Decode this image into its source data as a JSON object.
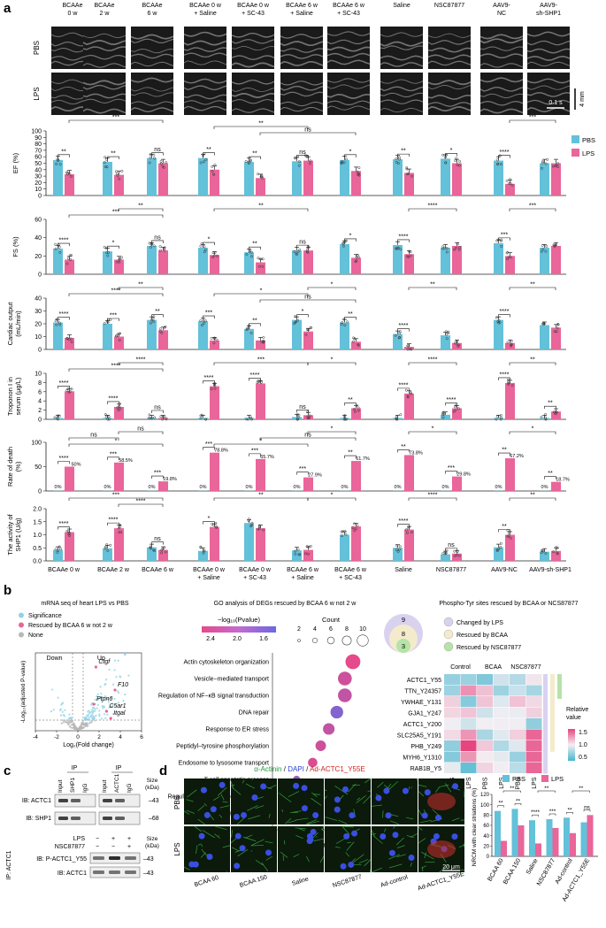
{
  "panels": {
    "a": "a",
    "b": "b",
    "c": "c",
    "d": "d"
  },
  "colors": {
    "pbs": "#63c1d9",
    "lps": "#e9659a",
    "axis": "#222222",
    "sig": "#111111",
    "echo_bg": "#1a1a1a"
  },
  "panel_a": {
    "echo_groups": [
      {
        "name": "BCAAe 0 w",
        "lines": [
          "BCAAe",
          "0 w"
        ]
      },
      {
        "name": "BCAAe 2 w",
        "lines": [
          "BCAAe",
          "2 w"
        ]
      },
      {
        "name": "BCAAe 6 w",
        "lines": [
          "BCAAe",
          "6 w"
        ]
      },
      {
        "name": "BCAAe 0 w + Saline",
        "lines": [
          "BCAAe 0 w",
          "+ Saline"
        ]
      },
      {
        "name": "BCAAe 0 w + SC-43",
        "lines": [
          "BCAAe 0 w",
          "+ SC-43"
        ]
      },
      {
        "name": "BCAAe 6 w + Saline",
        "lines": [
          "BCAAe 6 w",
          "+ Saline"
        ]
      },
      {
        "name": "BCAAe 6 w + SC-43",
        "lines": [
          "BCAAe 6 w",
          "+ SC-43"
        ]
      },
      {
        "name": "Saline",
        "lines": [
          "Saline"
        ]
      },
      {
        "name": "NSC87877",
        "lines": [
          "NSC87877"
        ]
      },
      {
        "name": "AAV9-NC",
        "lines": [
          "AAV9-",
          "NC"
        ]
      },
      {
        "name": "AAV9-sh-SHP1",
        "lines": [
          "AAV9-",
          "sh-SHP1"
        ]
      }
    ],
    "echo_rows": [
      "PBS",
      "LPS"
    ],
    "scale_bars": {
      "time": "0.1 s",
      "depth": "4 mm"
    },
    "legend": {
      "pbs": "PBS",
      "lps": "LPS"
    },
    "x_labels": [
      {
        "lines": [
          "BCAAe 0 w"
        ]
      },
      {
        "lines": [
          "BCAAe 2 w"
        ]
      },
      {
        "lines": [
          "BCAAe 6 w"
        ]
      },
      {
        "lines": [
          "BCAAe 0 w",
          "+ Saline"
        ]
      },
      {
        "lines": [
          "BCAAe 0 w",
          "+ SC-43"
        ]
      },
      {
        "lines": [
          "BCAAe 6 w",
          "+ Saline"
        ]
      },
      {
        "lines": [
          "BCAAe 6 w",
          "+ SC-43"
        ]
      },
      {
        "lines": [
          "Saline"
        ]
      },
      {
        "lines": [
          "NSC87877"
        ]
      },
      {
        "lines": [
          "AAV9-NC"
        ]
      },
      {
        "lines": [
          "AAV9-sh-SHP1"
        ]
      }
    ]
  },
  "chart_data": [
    {
      "type": "bar",
      "id": "ef",
      "ylabel": [
        "EF (%)"
      ],
      "ylim": [
        0,
        100
      ],
      "yticks": [
        "0",
        "10",
        "20",
        "30",
        "40",
        "50",
        "60",
        "70",
        "80",
        "90",
        "100"
      ],
      "categories": [
        "BCAAe 0 w",
        "BCAAe 2 w",
        "BCAAe 6 w",
        "BCAAe 0 w + Saline",
        "BCAAe 0 w + SC-43",
        "BCAAe 6 w + Saline",
        "BCAAe 6 w + SC-43",
        "Saline",
        "NSC87877",
        "AAV9-NC",
        "AAV9-sh-SHP1"
      ],
      "series": [
        {
          "name": "PBS",
          "values": [
            55,
            52,
            58,
            58,
            52,
            53,
            55,
            56,
            57,
            54,
            50
          ]
        },
        {
          "name": "LPS",
          "values": [
            33,
            32,
            50,
            40,
            27,
            54,
            38,
            35,
            50,
            18,
            50
          ]
        }
      ],
      "local_sig": [
        "**",
        "**",
        "ns",
        "**",
        "**",
        "ns",
        "*",
        "**",
        "*",
        "****",
        ""
      ],
      "cross_sig": [
        {
          "text": "***",
          "a": 0,
          "b": 2,
          "level": 0
        },
        {
          "text": "ns",
          "a": 4,
          "b": 6,
          "level": 2
        },
        {
          "text": "**",
          "a": 3,
          "b": 5,
          "level": 1
        },
        {
          "text": "***",
          "a": 9,
          "b": 10,
          "level": 0
        }
      ]
    },
    {
      "type": "bar",
      "id": "fs",
      "ylabel": [
        "FS (%)"
      ],
      "ylim": [
        0,
        60
      ],
      "yticks": [
        "0",
        "20",
        "40",
        "60"
      ],
      "categories": [
        "BCAAe 0 w",
        "BCAAe 2 w",
        "BCAAe 6 w",
        "BCAAe 0 w + Saline",
        "BCAAe 0 w + SC-43",
        "BCAAe 6 w + Saline",
        "BCAAe 6 w + SC-43",
        "Saline",
        "NSC87877",
        "AAV9-NC",
        "AAV9-sh-SHP1"
      ],
      "series": [
        {
          "name": "PBS",
          "values": [
            28,
            25,
            31,
            29,
            24,
            26,
            33,
            32,
            29,
            34,
            29
          ]
        },
        {
          "name": "LPS",
          "values": [
            16,
            16,
            26,
            21,
            13,
            26,
            18,
            22,
            31,
            20,
            31
          ]
        }
      ],
      "local_sig": [
        "****",
        "*",
        "ns",
        "*",
        "**",
        "ns",
        "*",
        "****",
        "",
        "***",
        ""
      ],
      "cross_sig": [
        {
          "text": "***",
          "a": 0,
          "b": 2,
          "level": 1
        },
        {
          "text": "**",
          "a": 1,
          "b": 2,
          "level": 0
        },
        {
          "text": "**",
          "a": 3,
          "b": 5,
          "level": 0
        },
        {
          "text": "****",
          "a": 7,
          "b": 8,
          "level": 0
        },
        {
          "text": "***",
          "a": 9,
          "b": 10,
          "level": 0
        }
      ]
    },
    {
      "type": "bar",
      "id": "co",
      "ylabel": [
        "Cardiac output",
        "(mL/min)"
      ],
      "ylim": [
        0,
        40
      ],
      "yticks": [
        "0",
        "10",
        "20",
        "30",
        "40"
      ],
      "categories": [
        "BCAAe 0 w",
        "BCAAe 2 w",
        "BCAAe 6 w",
        "BCAAe 0 w + Saline",
        "BCAAe 0 w + SC-43",
        "BCAAe 6 w + Saline",
        "BCAAe 6 w + SC-43",
        "Saline",
        "NSC87877",
        "AAV9-NC",
        "AAV9-sh-SHP1"
      ],
      "series": [
        {
          "name": "PBS",
          "values": [
            21,
            20,
            23,
            22,
            16,
            23,
            21,
            12,
            11,
            23,
            19
          ]
        },
        {
          "name": "LPS",
          "values": [
            9,
            10,
            15,
            7,
            7,
            14,
            6,
            2,
            5,
            5,
            17
          ]
        }
      ],
      "local_sig": [
        "****",
        "***",
        "**",
        "***",
        "**",
        "*",
        "**",
        "****",
        "",
        "****",
        ""
      ],
      "cross_sig": [
        {
          "text": "****",
          "a": 0,
          "b": 2,
          "level": 1
        },
        {
          "text": "**",
          "a": 1,
          "b": 2,
          "level": 0
        },
        {
          "text": "ns",
          "a": 4,
          "b": 6,
          "level": 2
        },
        {
          "text": "*",
          "a": 3,
          "b": 5,
          "level": 1
        },
        {
          "text": "*",
          "a": 5,
          "b": 6,
          "level": 0
        },
        {
          "text": "**",
          "a": 7,
          "b": 8,
          "level": 0
        },
        {
          "text": "**",
          "a": 9,
          "b": 10,
          "level": 0
        }
      ]
    },
    {
      "type": "bar",
      "id": "troponin",
      "ylabel": [
        "Troponon I in",
        "serum (μg/L)"
      ],
      "ylim": [
        0,
        10
      ],
      "yticks": [
        "0",
        "2",
        "4",
        "6",
        "8",
        "10"
      ],
      "categories": [
        "BCAAe 0 w",
        "BCAAe 2 w",
        "BCAAe 6 w",
        "BCAAe 0 w + Saline",
        "BCAAe 0 w + SC-43",
        "BCAAe 6 w + Saline",
        "BCAAe 6 w + SC-43",
        "Saline",
        "NSC87877",
        "AAV9-NC",
        "AAV9-sh-SHP1"
      ],
      "series": [
        {
          "name": "PBS",
          "values": [
            0.3,
            0.3,
            0.3,
            0.3,
            0.3,
            0.5,
            0.3,
            0.3,
            1.0,
            0.3,
            0.3
          ]
        },
        {
          "name": "LPS",
          "values": [
            6.1,
            2.7,
            0.3,
            7.2,
            7.8,
            0.9,
            2.4,
            5.6,
            2.4,
            7.9,
            1.7
          ]
        }
      ],
      "local_sig": [
        "****",
        "****",
        "ns",
        "****",
        "****",
        "ns",
        "**",
        "****",
        "****",
        "****",
        "**"
      ],
      "cross_sig": [
        {
          "text": "****",
          "a": 0,
          "b": 2,
          "level": 1
        },
        {
          "text": "****",
          "a": 1,
          "b": 2,
          "level": 0
        },
        {
          "text": "***",
          "a": 3,
          "b": 5,
          "level": 0
        },
        {
          "text": "*",
          "a": 5,
          "b": 6,
          "level": 0
        },
        {
          "text": "****",
          "a": 7,
          "b": 8,
          "level": 0
        },
        {
          "text": "**",
          "a": 9,
          "b": 10,
          "level": 0
        }
      ]
    },
    {
      "type": "bar",
      "id": "death",
      "ylabel": [
        "Rate of death",
        "(%)"
      ],
      "ylim": [
        0,
        100
      ],
      "yticks": [
        "0",
        "50",
        "100"
      ],
      "categories": [
        "BCAAe 0 w",
        "BCAAe 2 w",
        "BCAAe 6 w",
        "BCAAe 0 w + Saline",
        "BCAAe 0 w + SC-43",
        "BCAAe 6 w + Saline",
        "BCAAe 6 w + SC-43",
        "Saline",
        "NSC87877",
        "AAV9-NC",
        "AAV9-sh-SHP1"
      ],
      "series": [
        {
          "name": "PBS",
          "values": [
            0,
            0,
            0,
            0,
            0,
            0,
            0,
            0,
            0,
            0,
            0
          ]
        },
        {
          "name": "LPS",
          "values": [
            50,
            58.5,
            19.8,
            78.8,
            65.7,
            27.9,
            61.7,
            73.8,
            29.8,
            67.2,
            18.7
          ]
        }
      ],
      "pbs_labels": [
        "0%",
        "0%",
        "0%",
        "0%",
        "0%",
        "0%",
        "0%",
        "0%",
        "0%",
        "0%",
        "0%"
      ],
      "lps_labels": [
        "50%",
        "58.5%",
        "19.8%",
        "78.8%",
        "65.7%",
        "27.9%",
        "61.7%",
        "73.8%",
        "29.8%",
        "67.2%",
        "18.7%"
      ],
      "local_sig": [
        "****",
        "***",
        "***",
        "***",
        "***",
        "***",
        "**",
        "**",
        "***",
        "**",
        "**"
      ],
      "cross_sig": [
        {
          "text": "*",
          "a": 0,
          "b": 2,
          "level": 2
        },
        {
          "text": "ns",
          "a": 0,
          "b": 1,
          "level": 1
        },
        {
          "text": "ns",
          "a": 1,
          "b": 2,
          "level": 0
        },
        {
          "text": "*",
          "a": 3,
          "b": 5,
          "level": 2
        },
        {
          "text": "ns",
          "a": 4,
          "b": 6,
          "level": 1
        },
        {
          "text": "*",
          "a": 5,
          "b": 6,
          "level": 0
        },
        {
          "text": "*",
          "a": 7,
          "b": 8,
          "level": 0
        },
        {
          "text": "*",
          "a": 9,
          "b": 10,
          "level": 0
        }
      ]
    },
    {
      "type": "bar",
      "id": "shp1",
      "ylabel": [
        "The activity of",
        "SHP1 (U/g)"
      ],
      "ylim": [
        0,
        2
      ],
      "yticks": [
        "0.0",
        "0.5",
        "1.0",
        "1.5",
        "2.0"
      ],
      "categories": [
        "BCAAe 0 w",
        "BCAAe 2 w",
        "BCAAe 6 w",
        "BCAAe 0 w + Saline",
        "BCAAe 0 w + SC-43",
        "BCAAe 6 w + Saline",
        "BCAAe 6 w + SC-43",
        "Saline",
        "NSC87877",
        "AAV9-NC",
        "AAV9-sh-SHP1"
      ],
      "series": [
        {
          "name": "PBS",
          "values": [
            0.42,
            0.48,
            0.52,
            0.38,
            1.45,
            0.4,
            1.0,
            0.5,
            0.25,
            0.52,
            0.35
          ]
        },
        {
          "name": "LPS",
          "values": [
            1.1,
            1.25,
            0.42,
            1.3,
            1.25,
            0.42,
            1.32,
            1.2,
            0.28,
            1.0,
            0.38
          ]
        }
      ],
      "local_sig": [
        "****",
        "****",
        "ns",
        "*",
        "",
        "",
        "",
        "****",
        "ns",
        "**",
        ""
      ],
      "cross_sig": [
        {
          "text": "***",
          "a": 0,
          "b": 2,
          "level": 0
        },
        {
          "text": "****",
          "a": 1,
          "b": 2,
          "level": 1
        },
        {
          "text": "**",
          "a": 3,
          "b": 5,
          "level": 0
        },
        {
          "text": "*",
          "a": 5,
          "b": 6,
          "level": 0
        },
        {
          "text": "****",
          "a": 7,
          "b": 8,
          "level": 0
        },
        {
          "text": "**",
          "a": 9,
          "b": 10,
          "level": 0
        }
      ]
    },
    {
      "type": "scatter",
      "id": "volcano",
      "title": "mRNA seq of heart  LPS vs PBS",
      "xlabel": "Log₂(Fold change)",
      "ylabel": "-Log₁₀(adjusted P-value)",
      "xlim": [
        -4,
        6
      ],
      "xticks": [
        "-4",
        "-2",
        "0",
        "2",
        "4",
        "6"
      ],
      "legend": [
        "Significance",
        "Rescued by BCAA 6 w not 2 w",
        "None"
      ],
      "regions": [
        "Down",
        "Up"
      ],
      "genes": [
        "Ctgf",
        "F10",
        "Ptpn6",
        "C5ar1",
        "Itgal"
      ]
    },
    {
      "type": "scatter",
      "id": "go",
      "title": "GO analysis of DEGs rescued by BCAA 6 w not 2 w",
      "color_title": "−log₁₀(Pvalue)",
      "color_ticks": [
        "2.4",
        "2.0",
        "1.6"
      ],
      "size_title": "Count",
      "size_ticks": [
        "2",
        "4",
        "6",
        "8",
        "10"
      ],
      "xlabel": "Count",
      "xticks": [
        "3",
        "6",
        "9"
      ],
      "terms": [
        "Actin cytoskeleton organization",
        "Vesicle−mediated transport",
        "Regulation of NF−κB signal transduction",
        "DNA repair",
        "Response to ER stress",
        "Peptidyl−tyrosine phosphorylation",
        "Endosome to lysosome transport",
        "T cell apoptotic process",
        "Regulation of plasminogen activation",
        "Regulation of fibrinolysis"
      ],
      "counts": [
        11,
        10,
        10,
        9,
        8,
        7,
        6,
        4,
        2,
        2
      ],
      "pvals": [
        2.5,
        2.3,
        2.2,
        1.7,
        2.2,
        2.3,
        2.4,
        1.9,
        1.6,
        1.5
      ]
    },
    {
      "type": "heatmap",
      "id": "phospho",
      "title": "Phospho-Tyr sites rescued by BCAA or NCS87877",
      "venn_values": [
        "9",
        "8",
        "3"
      ],
      "venn_legend": [
        "Changed by LPS",
        "Rescued by BCAA",
        "Rescued by NSC87877"
      ],
      "column_groups": [
        "Control",
        "BCAA",
        "NSC87877"
      ],
      "columns": [
        "PBS",
        "LPS",
        "PBS",
        "LPS",
        "PBS",
        "LPS"
      ],
      "rows": [
        "ACTC1_Y55",
        "TTN_Y24357",
        "YWHAE_Y131",
        "GJA1_Y247",
        "ACTC1_Y200",
        "SLC25A5_Y191",
        "PHB_Y249",
        "MYH6_Y1310",
        "RAB1B_Y5"
      ],
      "colorbar_title": [
        "Relative",
        "value"
      ],
      "colorbar_ticks": [
        "1.5",
        "1.0",
        "0.5"
      ],
      "range": [
        0.5,
        1.5
      ]
    },
    {
      "type": "bar",
      "id": "striations",
      "ylabel": [
        "NRCM with clear striations (%)"
      ],
      "ylim": [
        0,
        120
      ],
      "yticks": [
        "0",
        "20",
        "40",
        "60",
        "80",
        "100",
        "120"
      ],
      "categories": [
        "BCAA 60",
        "BCAA 150",
        "Saline",
        "NSC87877",
        "Ad-control",
        "Ad-ACTC1_Y55E"
      ],
      "series": [
        {
          "name": "PBS",
          "values": [
            88,
            92,
            70,
            72,
            75,
            66
          ]
        },
        {
          "name": "LPS",
          "values": [
            30,
            60,
            25,
            55,
            45,
            80
          ]
        }
      ],
      "local_sig": [
        "**",
        "**",
        "****",
        "***",
        "**",
        "ns"
      ],
      "cross_sig": [
        {
          "text": "**",
          "a": 0,
          "b": 1,
          "level": 1
        },
        {
          "text": "**",
          "a": 2,
          "b": 3,
          "level": 1
        },
        {
          "text": "**",
          "a": 4,
          "b": 5,
          "level": 1
        }
      ]
    }
  ],
  "panel_c": {
    "ip_header": [
      "IP",
      "IP"
    ],
    "lanes_left": [
      "Input",
      "SHP1",
      "IgG"
    ],
    "lanes_right": [
      "Input",
      "ACTC1",
      "IgG"
    ],
    "size_header": [
      "Size",
      "(kDa)"
    ],
    "blot_top": [
      {
        "label": "IB: ACTC1",
        "size": "43"
      },
      {
        "label": "IB: SHP1",
        "size": "68"
      }
    ],
    "treat_rows": [
      {
        "label": "LPS",
        "marks": [
          "−",
          "+",
          "+"
        ]
      },
      {
        "label": "NSC87877",
        "marks": [
          "−",
          "−",
          "+"
        ]
      }
    ],
    "blot_bottom": [
      {
        "label": "IB: P-ACTC1_Y55",
        "size": "43"
      },
      {
        "label": "IB: ACTC1",
        "size": "43"
      }
    ],
    "ip_side": "IP: ACTC1"
  },
  "panel_d": {
    "stain_title": [
      "α-Actinin",
      " / ",
      "DAPI",
      " / ",
      "Ad-ACTC1_Y55E"
    ],
    "rows": [
      "PBS",
      "LPS"
    ],
    "columns": [
      "BCAA 60",
      "BCAA 150",
      "Saline",
      "NSC87877",
      "Ad-control",
      "Ad-ACTC1_Y55E"
    ],
    "scale": "20 μm",
    "legend": {
      "pbs": "PBS",
      "lps": "LPS"
    }
  }
}
